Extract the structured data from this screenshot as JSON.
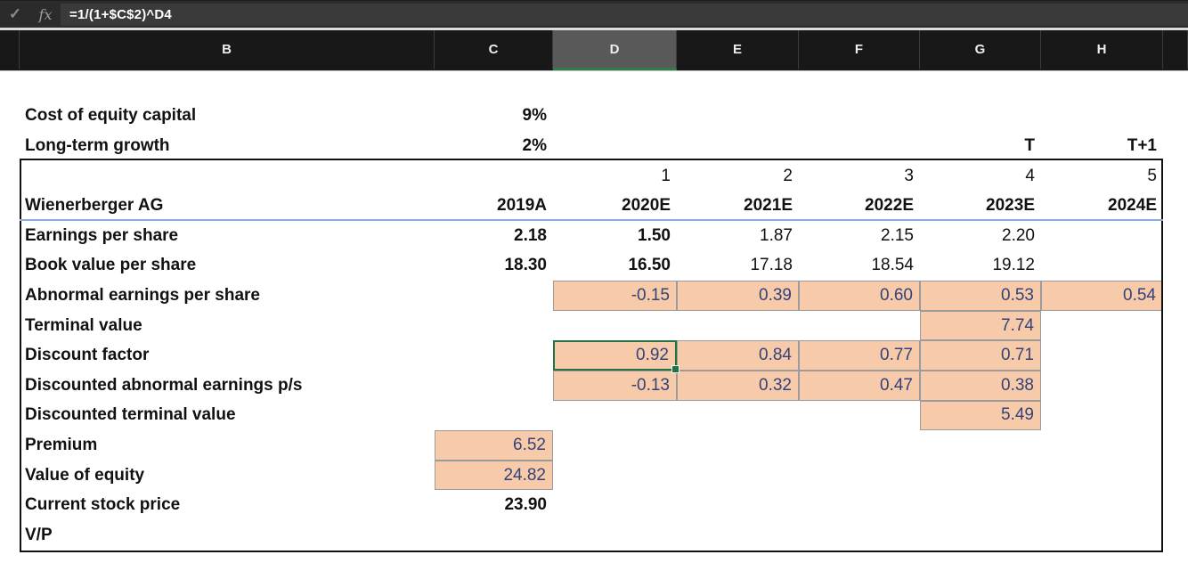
{
  "formula_bar": {
    "confirm_icon": "✓",
    "fx_label": "fx",
    "formula": "=1/(1+$C$2)^D4"
  },
  "column_headers": {
    "labels": [
      "B",
      "C",
      "D",
      "E",
      "F",
      "G",
      "H"
    ],
    "selected": "D"
  },
  "colors": {
    "orange_fill": "#F7CBA9",
    "orange_cell_text_navy": "#33427A",
    "selection_green": "#217346",
    "header_underline_blue": "#8FAADC",
    "column_header_bg": "#181818",
    "selected_column_header_bg": "#595959"
  },
  "sheet": {
    "title": "Wienerberger AG",
    "rows": [
      {
        "row": 1,
        "label": "",
        "cells": []
      },
      {
        "row": 2,
        "label": "Cost of equity capital",
        "cells": [
          {
            "col": "C",
            "text": "9%",
            "bold": true
          }
        ]
      },
      {
        "row": 3,
        "label": "Long-term growth",
        "cells": [
          {
            "col": "C",
            "text": "2%",
            "bold": true
          },
          {
            "col": "G",
            "text": "T",
            "bold": true
          },
          {
            "col": "H",
            "text": "T+1",
            "bold": true
          }
        ]
      },
      {
        "row": 4,
        "label": "",
        "cells": [
          {
            "col": "D",
            "text": "1"
          },
          {
            "col": "E",
            "text": "2"
          },
          {
            "col": "F",
            "text": "3"
          },
          {
            "col": "G",
            "text": "4"
          },
          {
            "col": "H",
            "text": "5"
          }
        ]
      },
      {
        "row": 5,
        "label": "Wienerberger AG",
        "cells": [
          {
            "col": "C",
            "text": "2019A",
            "bold": true
          },
          {
            "col": "D",
            "text": "2020E",
            "bold": true
          },
          {
            "col": "E",
            "text": "2021E",
            "bold": true
          },
          {
            "col": "F",
            "text": "2022E",
            "bold": true
          },
          {
            "col": "G",
            "text": "2023E",
            "bold": true
          },
          {
            "col": "H",
            "text": "2024E",
            "bold": true
          }
        ]
      },
      {
        "row": 6,
        "label": "Earnings per share",
        "cells": [
          {
            "col": "C",
            "text": "2.18",
            "bold": true
          },
          {
            "col": "D",
            "text": "1.50",
            "bold": true
          },
          {
            "col": "E",
            "text": "1.87"
          },
          {
            "col": "F",
            "text": "2.15"
          },
          {
            "col": "G",
            "text": "2.20"
          }
        ]
      },
      {
        "row": 7,
        "label": "Book value per share",
        "cells": [
          {
            "col": "C",
            "text": "18.30",
            "bold": true
          },
          {
            "col": "D",
            "text": "16.50",
            "bold": true
          },
          {
            "col": "E",
            "text": "17.18"
          },
          {
            "col": "F",
            "text": "18.54"
          },
          {
            "col": "G",
            "text": "19.12"
          }
        ]
      },
      {
        "row": 8,
        "label": "Abnormal earnings per share",
        "cells": [
          {
            "col": "D",
            "text": "-0.15",
            "orange": true
          },
          {
            "col": "E",
            "text": "0.39",
            "orange": true
          },
          {
            "col": "F",
            "text": "0.60",
            "orange": true
          },
          {
            "col": "G",
            "text": "0.53",
            "orange": true
          },
          {
            "col": "H",
            "text": "0.54",
            "orange": true
          }
        ]
      },
      {
        "row": 9,
        "label": "Terminal value",
        "cells": [
          {
            "col": "G",
            "text": "7.74",
            "orange": true
          }
        ]
      },
      {
        "row": 10,
        "label": "Discount factor",
        "cells": [
          {
            "col": "D",
            "text": "0.92",
            "orange": true,
            "selected": true
          },
          {
            "col": "E",
            "text": "0.84",
            "orange": true
          },
          {
            "col": "F",
            "text": "0.77",
            "orange": true
          },
          {
            "col": "G",
            "text": "0.71",
            "orange": true
          }
        ]
      },
      {
        "row": 11,
        "label": "Discounted abnormal earnings p/s",
        "cells": [
          {
            "col": "D",
            "text": "-0.13",
            "orange": true
          },
          {
            "col": "E",
            "text": "0.32",
            "orange": true
          },
          {
            "col": "F",
            "text": "0.47",
            "orange": true
          },
          {
            "col": "G",
            "text": "0.38",
            "orange": true
          }
        ]
      },
      {
        "row": 12,
        "label": "Discounted terminal value",
        "cells": [
          {
            "col": "G",
            "text": "5.49",
            "orange": true
          }
        ]
      },
      {
        "row": 13,
        "label": "Premium",
        "cells": [
          {
            "col": "C",
            "text": "6.52",
            "orange": true
          }
        ]
      },
      {
        "row": 14,
        "label": "Value of equity",
        "cells": [
          {
            "col": "C",
            "text": "24.82",
            "orange": true
          }
        ]
      },
      {
        "row": 15,
        "label": "Current stock price",
        "cells": [
          {
            "col": "C",
            "text": "23.90",
            "bold": true
          }
        ]
      },
      {
        "row": 16,
        "label": "V/P",
        "cells": []
      }
    ]
  }
}
